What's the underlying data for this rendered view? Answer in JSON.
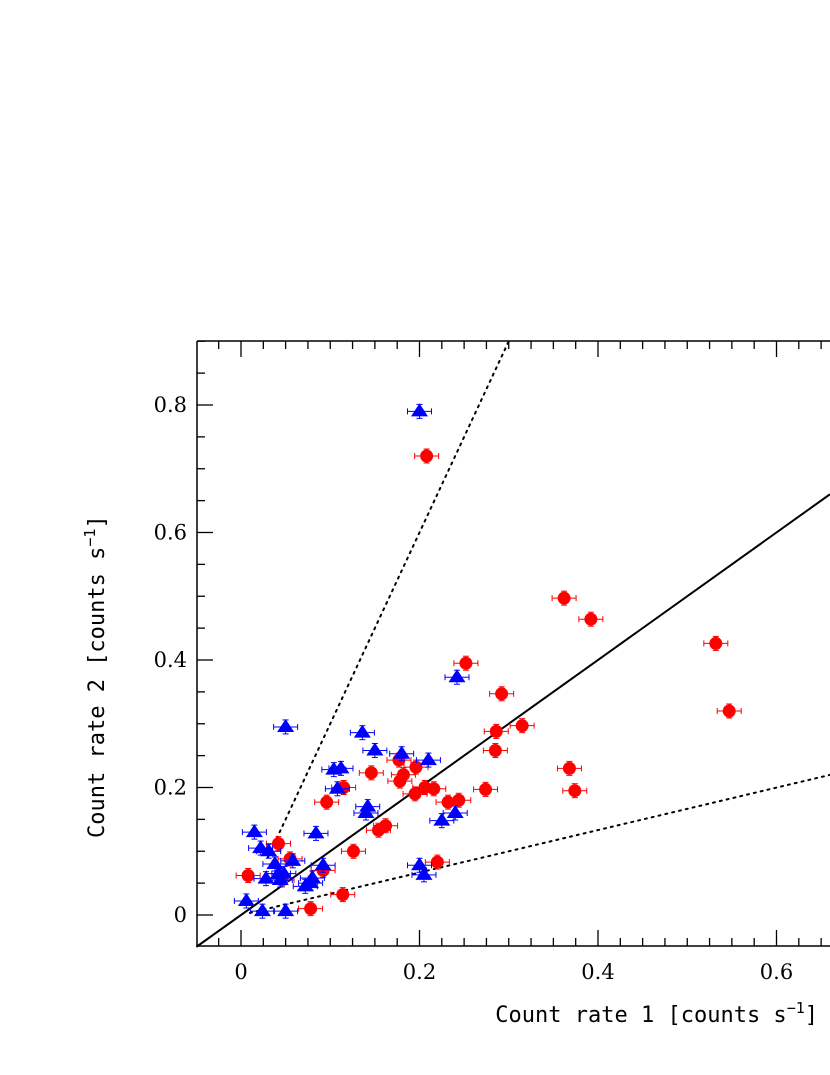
{
  "chart_data": {
    "type": "scatter",
    "xlabel": "Count rate 1 [counts s",
    "ylabel": "Count rate 2 [counts s",
    "unit_exponent": "−1",
    "unit_close": "]",
    "xlim": [
      -0.05,
      0.66
    ],
    "ylim": [
      -0.05,
      0.9
    ],
    "x_ticks": [
      0,
      0.2,
      0.4,
      0.6
    ],
    "x_tick_labels": [
      "0",
      "0.2",
      "0.4",
      "0.6"
    ],
    "y_ticks": [
      0,
      0.2,
      0.4,
      0.6,
      0.8
    ],
    "y_tick_labels": [
      "0",
      "0.2",
      "0.4",
      "0.6",
      "0.8"
    ],
    "grid": false,
    "lines": [
      {
        "style": "solid",
        "slope": 1.0
      },
      {
        "style": "dotted",
        "slope": 3.0
      },
      {
        "style": "dotted",
        "slope": 0.333
      }
    ],
    "series": [
      {
        "marker": "circle",
        "color": "#ff0000",
        "points": [
          [
            0.008,
            0.062
          ],
          [
            0.042,
            0.112
          ],
          [
            0.055,
            0.088
          ],
          [
            0.046,
            0.055
          ],
          [
            0.078,
            0.01
          ],
          [
            0.092,
            0.07
          ],
          [
            0.096,
            0.177
          ],
          [
            0.114,
            0.032
          ],
          [
            0.115,
            0.2
          ],
          [
            0.126,
            0.1
          ],
          [
            0.146,
            0.223
          ],
          [
            0.154,
            0.133
          ],
          [
            0.162,
            0.14
          ],
          [
            0.177,
            0.243
          ],
          [
            0.178,
            0.21
          ],
          [
            0.182,
            0.22
          ],
          [
            0.196,
            0.232
          ],
          [
            0.195,
            0.19
          ],
          [
            0.206,
            0.2
          ],
          [
            0.216,
            0.198
          ],
          [
            0.22,
            0.083
          ],
          [
            0.232,
            0.177
          ],
          [
            0.244,
            0.18
          ],
          [
            0.252,
            0.395
          ],
          [
            0.274,
            0.197
          ],
          [
            0.285,
            0.258
          ],
          [
            0.286,
            0.288
          ],
          [
            0.292,
            0.347
          ],
          [
            0.315,
            0.297
          ],
          [
            0.208,
            0.72
          ],
          [
            0.362,
            0.497
          ],
          [
            0.368,
            0.23
          ],
          [
            0.374,
            0.195
          ],
          [
            0.392,
            0.464
          ],
          [
            0.532,
            0.426
          ],
          [
            0.547,
            0.32
          ]
        ]
      },
      {
        "marker": "triangle",
        "color": "#0000ff",
        "points": [
          [
            0.006,
            0.022
          ],
          [
            0.015,
            0.13
          ],
          [
            0.022,
            0.105
          ],
          [
            0.024,
            0.006
          ],
          [
            0.028,
            0.057
          ],
          [
            0.031,
            0.1
          ],
          [
            0.038,
            0.08
          ],
          [
            0.042,
            0.065
          ],
          [
            0.044,
            0.055
          ],
          [
            0.048,
            0.065
          ],
          [
            0.05,
            0.006
          ],
          [
            0.05,
            0.295
          ],
          [
            0.058,
            0.085
          ],
          [
            0.072,
            0.045
          ],
          [
            0.078,
            0.05
          ],
          [
            0.08,
            0.058
          ],
          [
            0.084,
            0.128
          ],
          [
            0.092,
            0.078
          ],
          [
            0.104,
            0.228
          ],
          [
            0.108,
            0.198
          ],
          [
            0.112,
            0.23
          ],
          [
            0.136,
            0.286
          ],
          [
            0.14,
            0.16
          ],
          [
            0.142,
            0.17
          ],
          [
            0.15,
            0.258
          ],
          [
            0.18,
            0.253
          ],
          [
            0.2,
            0.078
          ],
          [
            0.2,
            0.79
          ],
          [
            0.205,
            0.063
          ],
          [
            0.21,
            0.243
          ],
          [
            0.225,
            0.148
          ],
          [
            0.24,
            0.16
          ],
          [
            0.242,
            0.373
          ]
        ]
      }
    ]
  }
}
